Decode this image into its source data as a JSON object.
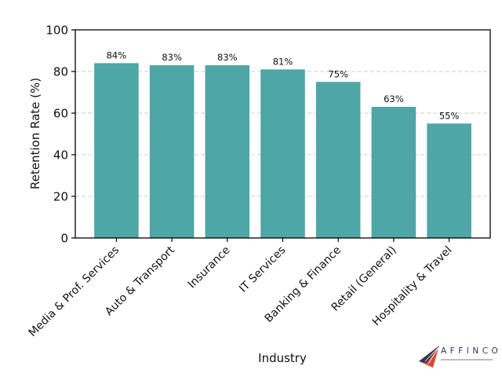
{
  "chart_data": {
    "type": "bar",
    "title": "",
    "xlabel": "Industry",
    "ylabel": "Retention Rate (%)",
    "ylim": [
      0,
      100
    ],
    "yticks": [
      0,
      20,
      40,
      60,
      80,
      100
    ],
    "grid": {
      "axis": "y",
      "style": "dashed",
      "color": "#cccccc"
    },
    "categories": [
      "Media & Prof. Services",
      "Auto & Transport",
      "Insurance",
      "IT Services",
      "Banking & Finance",
      "Retail (General)",
      "Hospitality & Travel"
    ],
    "values": [
      84,
      83,
      83,
      81,
      75,
      63,
      55
    ],
    "value_labels": [
      "84%",
      "83%",
      "83%",
      "81%",
      "75%",
      "63%",
      "55%"
    ],
    "bar_color": "#4fa6a6",
    "legend": null
  },
  "branding": {
    "logo_name": "AFFINCO"
  }
}
